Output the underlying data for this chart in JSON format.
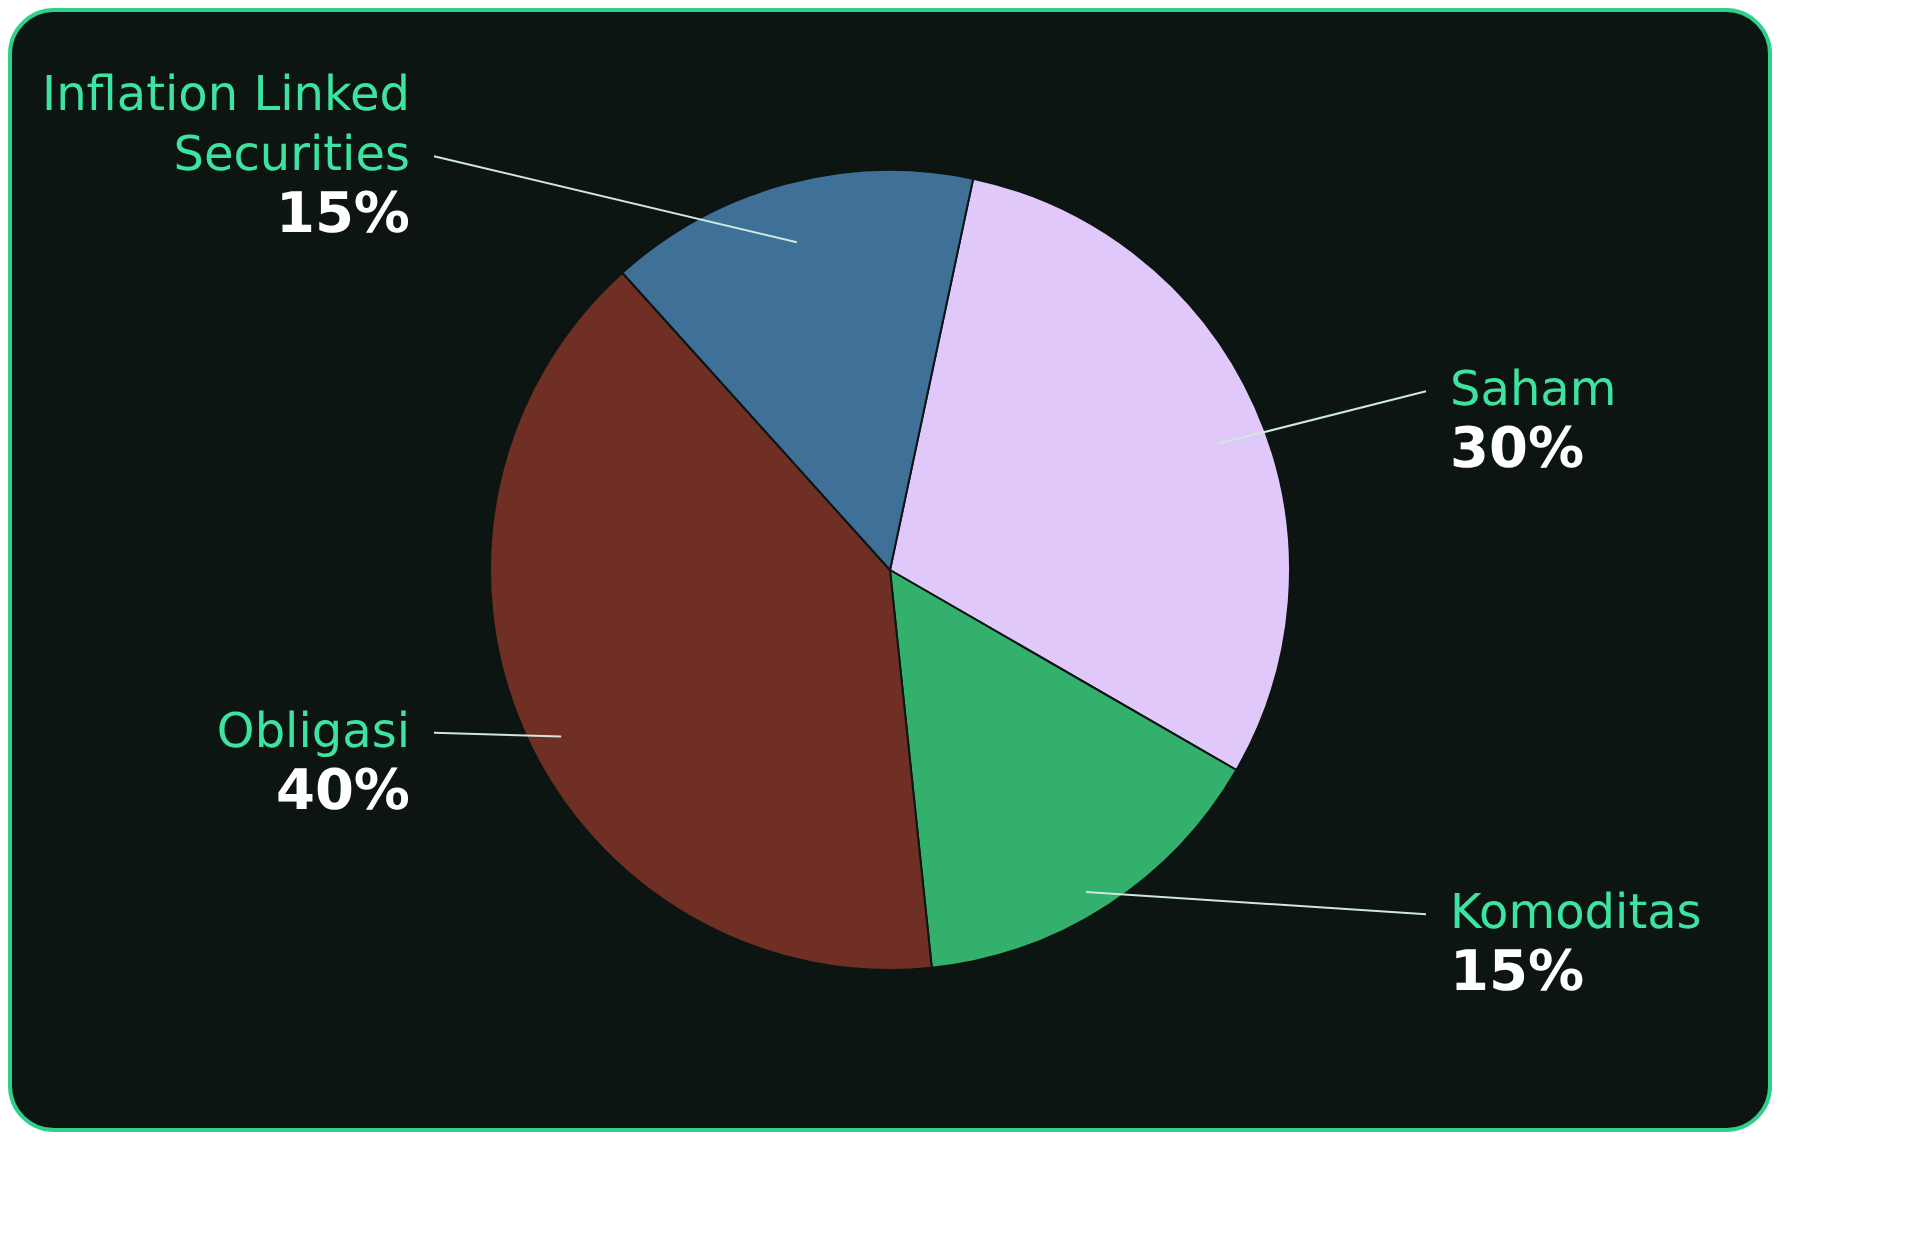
{
  "chart_data": {
    "type": "pie",
    "categories": [
      "Saham",
      "Komoditas",
      "Obligasi",
      "Inflation Linked Securities"
    ],
    "values": [
      30,
      15,
      40,
      15
    ],
    "value_labels": [
      "30%",
      "15%",
      "40%",
      "15%"
    ],
    "colors": [
      "#e0c8fb",
      "#33b06b",
      "#702f25",
      "#3e7098"
    ],
    "legend": false
  }
}
